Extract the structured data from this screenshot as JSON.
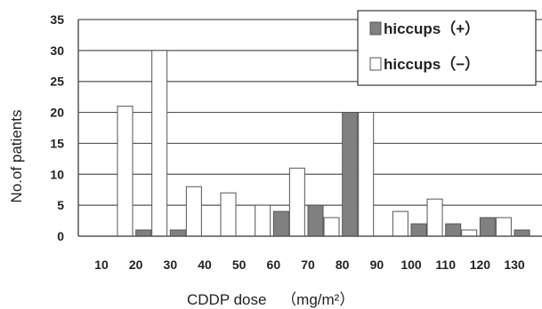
{
  "chart_data": {
    "type": "bar",
    "title": "",
    "xlabel": "CDDP dose",
    "xlabel_unit": "（mg/m²）",
    "ylabel": "No.of patients",
    "ylim": [
      0,
      35
    ],
    "yticks": [
      0,
      5,
      10,
      15,
      20,
      25,
      30,
      35
    ],
    "grid": true,
    "legend_position": "top-right",
    "categories": [
      "10",
      "20",
      "30",
      "40",
      "50",
      "60",
      "70",
      "80",
      "90",
      "100",
      "110",
      "120",
      "130"
    ],
    "series": [
      {
        "name": "hiccups（+）",
        "color": "#808080",
        "values": [
          0,
          1,
          1,
          0,
          0,
          4,
          5,
          20,
          0,
          2,
          2,
          3,
          1
        ]
      },
      {
        "name": "hiccups（−）",
        "color": "#ffffff",
        "values": [
          21,
          30,
          8,
          7,
          5,
          11,
          3,
          20,
          4,
          6,
          1,
          3,
          0
        ]
      }
    ]
  }
}
